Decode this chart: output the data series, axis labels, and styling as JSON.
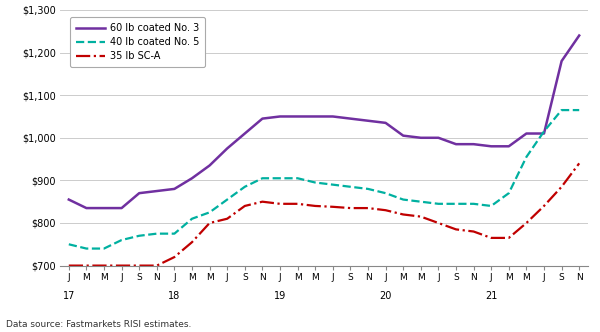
{
  "footnote": "Data source: Fastmarkets RISI estimates.",
  "x_labels": [
    "J",
    "M",
    "M",
    "J",
    "S",
    "N",
    "J",
    "M",
    "M",
    "J",
    "S",
    "N",
    "J",
    "M",
    "M",
    "J",
    "S",
    "N",
    "J",
    "M",
    "M",
    "J",
    "S",
    "N",
    "J",
    "M",
    "M",
    "J",
    "S",
    "N"
  ],
  "x_years": [
    "17",
    "",
    "",
    "",
    "",
    "",
    "18",
    "",
    "",
    "",
    "",
    "",
    "19",
    "",
    "",
    "",
    "",
    "",
    "20",
    "",
    "",
    "",
    "",
    "",
    "21",
    "",
    "",
    "",
    "",
    ""
  ],
  "series": [
    {
      "label": "60 lb coated No. 3",
      "color": "#7030A0",
      "linestyle": "solid",
      "linewidth": 1.8,
      "values": [
        855,
        835,
        835,
        835,
        870,
        875,
        880,
        905,
        935,
        975,
        1010,
        1045,
        1050,
        1050,
        1050,
        1050,
        1045,
        1040,
        1035,
        1005,
        1000,
        1000,
        985,
        985,
        980,
        980,
        1010,
        1010,
        1180,
        1240
      ]
    },
    {
      "label": "40 lb coated No. 5",
      "color": "#00B0A0",
      "linestyle": "dashed",
      "linewidth": 1.6,
      "values": [
        750,
        740,
        740,
        760,
        770,
        775,
        775,
        810,
        825,
        855,
        885,
        905,
        905,
        905,
        895,
        890,
        885,
        880,
        870,
        855,
        850,
        845,
        845,
        845,
        840,
        870,
        955,
        1015,
        1065,
        1065
      ]
    },
    {
      "label": "35 lb SC-A",
      "color": "#C00000",
      "linestyle": "dashdot",
      "linewidth": 1.6,
      "values": [
        700,
        700,
        700,
        700,
        700,
        700,
        720,
        755,
        800,
        810,
        840,
        850,
        845,
        845,
        840,
        838,
        835,
        835,
        830,
        820,
        815,
        800,
        785,
        780,
        765,
        765,
        800,
        840,
        885,
        940
      ]
    }
  ],
  "ylim": [
    700,
    1300
  ],
  "yticks": [
    700,
    800,
    900,
    1000,
    1100,
    1200,
    1300
  ],
  "ytick_labels": [
    "$700",
    "$800",
    "$900",
    "$1,000",
    "$1,100",
    "$1,200",
    "$1,300"
  ],
  "background_color": "#ffffff",
  "grid_color": "#cccccc"
}
